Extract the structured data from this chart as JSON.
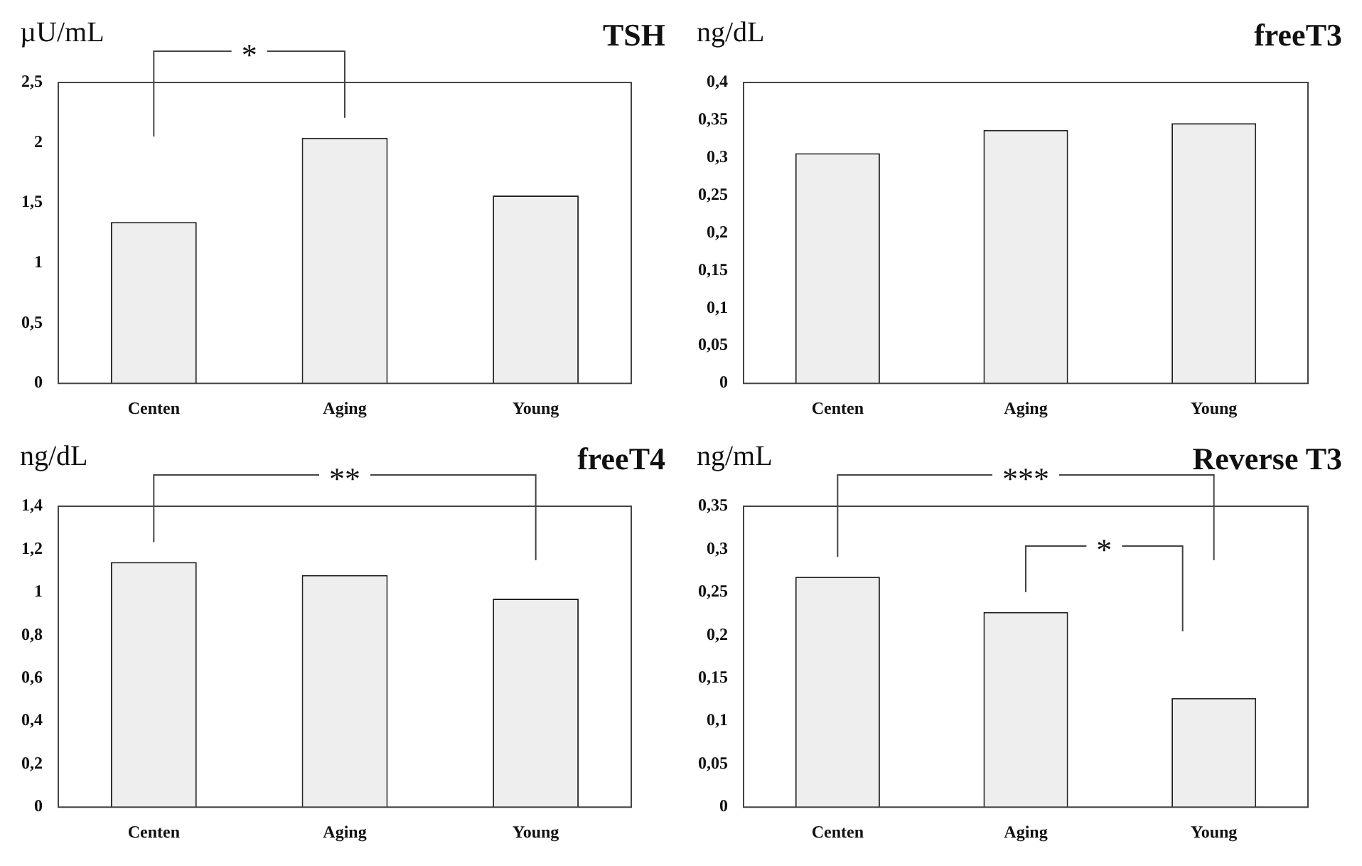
{
  "chart_data": [
    {
      "type": "bar",
      "title": "TSH",
      "ylabel": "µU/mL",
      "categories": [
        "Centen",
        "Aging",
        "Young"
      ],
      "values": [
        1.34,
        2.04,
        1.56
      ],
      "color": "#eeeeee",
      "ylim": [
        0,
        2.5
      ],
      "yticks": [
        0,
        {
          "value": 0.5,
          "label": "0,5"
        },
        1,
        {
          "value": 1.5,
          "label": "1,5"
        },
        2,
        {
          "value": 2.5,
          "label": "2,5"
        }
      ],
      "grid": false,
      "legend": false,
      "annotations": [
        "*"
      ]
    },
    {
      "type": "bar",
      "title": "freeT3",
      "ylabel": "ng/dL",
      "categories": [
        "Centen",
        "Aging",
        "Young"
      ],
      "values": [
        0.306,
        0.337,
        0.346
      ],
      "color": "#eeeeee",
      "ylim": [
        0,
        0.4
      ],
      "yticks": [
        0,
        {
          "value": 0.05,
          "label": "0,05"
        },
        {
          "value": 0.1,
          "label": "0,1"
        },
        {
          "value": 0.15,
          "label": "0,15"
        },
        {
          "value": 0.2,
          "label": "0,2"
        },
        {
          "value": 0.25,
          "label": "0,25"
        },
        {
          "value": 0.3,
          "label": "0,3"
        },
        {
          "value": 0.35,
          "label": "0,35"
        },
        {
          "value": 0.4,
          "label": "0,4"
        }
      ],
      "grid": false,
      "legend": false
    },
    {
      "type": "bar",
      "title": "freeT4",
      "ylabel": "ng/dL",
      "categories": [
        "Centen",
        "Aging",
        "Young"
      ],
      "values": [
        1.14,
        1.08,
        0.97
      ],
      "color": "#eeeeee",
      "ylim": [
        0,
        1.4
      ],
      "yticks": [
        0,
        {
          "value": 0.2,
          "label": "0,2"
        },
        {
          "value": 0.4,
          "label": "0,4"
        },
        {
          "value": 0.6,
          "label": "0,6"
        },
        {
          "value": 0.8,
          "label": "0,8"
        },
        1,
        {
          "value": 1.2,
          "label": "1,2"
        },
        {
          "value": 1.4,
          "label": "1,4"
        }
      ],
      "grid": false,
      "legend": false,
      "annotations": [
        "**"
      ]
    },
    {
      "type": "bar",
      "title": "Reverse T3",
      "ylabel": "ng/mL",
      "categories": [
        "Centen",
        "Aging",
        "Young"
      ],
      "values": [
        0.268,
        0.227,
        0.127
      ],
      "color": "#eeeeee",
      "ylim": [
        0,
        0.35
      ],
      "yticks": [
        0,
        {
          "value": 0.05,
          "label": "0,05"
        },
        {
          "value": 0.1,
          "label": "0,1"
        },
        {
          "value": 0.15,
          "label": "0,15"
        },
        {
          "value": 0.2,
          "label": "0,2"
        },
        {
          "value": 0.25,
          "label": "0,25"
        },
        {
          "value": 0.3,
          "label": "0,3"
        },
        {
          "value": 0.35,
          "label": "0,35"
        }
      ],
      "grid": false,
      "legend": false,
      "annotations": [
        "***",
        "*"
      ]
    }
  ]
}
